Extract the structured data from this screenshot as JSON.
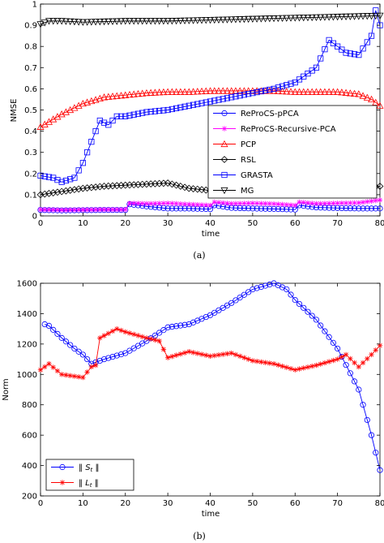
{
  "chart_data": [
    {
      "panel": "(a)",
      "type": "line",
      "xlabel": "time",
      "ylabel": "NMSE",
      "xlim": [
        0,
        80
      ],
      "ylim": [
        0,
        1
      ],
      "xticks": [
        0,
        10,
        20,
        30,
        40,
        50,
        60,
        70,
        80
      ],
      "yticks": [
        0,
        0.1,
        0.2,
        0.3,
        0.4,
        0.5,
        0.6,
        0.7,
        0.8,
        0.9,
        1
      ],
      "ytick_labels": [
        "0",
        "0.1",
        "0.2",
        "0.3",
        "0.4",
        "0.5",
        "0.6",
        "0.7",
        "0.8",
        "0.9",
        "1"
      ],
      "grid": false,
      "legend_position": "center-right",
      "series": [
        {
          "name": "ReProCS-pPCA",
          "color": "#0000ff",
          "marker": "circle",
          "x": [
            0,
            5,
            10,
            15,
            20,
            21,
            25,
            30,
            35,
            40,
            41,
            45,
            50,
            55,
            60,
            61,
            65,
            70,
            75,
            80
          ],
          "y": [
            0.028,
            0.026,
            0.027,
            0.028,
            0.028,
            0.055,
            0.045,
            0.035,
            0.035,
            0.032,
            0.05,
            0.038,
            0.035,
            0.033,
            0.03,
            0.05,
            0.04,
            0.037,
            0.035,
            0.035
          ]
        },
        {
          "name": "ReProCS-Recursive-PCA",
          "color": "#ff00ff",
          "marker": "star",
          "x": [
            0,
            5,
            10,
            15,
            20,
            21,
            25,
            30,
            35,
            40,
            41,
            45,
            50,
            55,
            60,
            61,
            65,
            70,
            75,
            80
          ],
          "y": [
            0.03,
            0.028,
            0.029,
            0.03,
            0.03,
            0.06,
            0.058,
            0.06,
            0.055,
            0.05,
            0.065,
            0.058,
            0.06,
            0.057,
            0.05,
            0.065,
            0.058,
            0.06,
            0.062,
            0.075
          ]
        },
        {
          "name": "PCP",
          "color": "#ff0000",
          "marker": "triangle-up",
          "x": [
            0,
            5,
            10,
            15,
            20,
            25,
            30,
            35,
            40,
            45,
            50,
            55,
            60,
            65,
            70,
            75,
            78,
            80
          ],
          "y": [
            0.42,
            0.48,
            0.53,
            0.56,
            0.57,
            0.58,
            0.585,
            0.585,
            0.59,
            0.59,
            0.59,
            0.59,
            0.585,
            0.585,
            0.585,
            0.575,
            0.55,
            0.52
          ]
        },
        {
          "name": "RSL",
          "color": "#000000",
          "marker": "diamond",
          "x": [
            0,
            5,
            10,
            15,
            20,
            25,
            30,
            35,
            40,
            45,
            50,
            55,
            60,
            65,
            70,
            75,
            80
          ],
          "y": [
            0.1,
            0.115,
            0.13,
            0.14,
            0.145,
            0.15,
            0.155,
            0.13,
            0.12,
            0.12,
            0.125,
            0.13,
            0.13,
            0.13,
            0.135,
            0.13,
            0.14
          ]
        },
        {
          "name": "GRASTA",
          "color": "#0000ff",
          "marker": "square",
          "x": [
            0,
            3,
            5,
            8,
            10,
            12,
            14,
            16,
            18,
            20,
            25,
            30,
            35,
            40,
            45,
            50,
            55,
            60,
            65,
            68,
            70,
            72,
            75,
            78,
            79,
            80
          ],
          "y": [
            0.19,
            0.18,
            0.16,
            0.18,
            0.25,
            0.35,
            0.45,
            0.43,
            0.47,
            0.47,
            0.49,
            0.5,
            0.52,
            0.54,
            0.56,
            0.58,
            0.6,
            0.63,
            0.7,
            0.83,
            0.8,
            0.77,
            0.76,
            0.85,
            0.97,
            0.9
          ]
        },
        {
          "name": "MG",
          "color": "#000000",
          "marker": "triangle-down",
          "x": [
            0,
            2,
            5,
            10,
            20,
            30,
            40,
            50,
            60,
            70,
            80
          ],
          "y": [
            0.905,
            0.92,
            0.92,
            0.915,
            0.92,
            0.92,
            0.925,
            0.93,
            0.935,
            0.94,
            0.945
          ]
        }
      ]
    },
    {
      "panel": "(b)",
      "type": "line",
      "xlabel": "time",
      "ylabel": "Norm",
      "xlim": [
        0,
        80
      ],
      "ylim": [
        200,
        1600
      ],
      "xticks": [
        0,
        10,
        20,
        30,
        40,
        50,
        60,
        70,
        80
      ],
      "yticks": [
        200,
        400,
        600,
        800,
        1000,
        1200,
        1400,
        1600
      ],
      "ytick_labels": [
        "200",
        "400",
        "600",
        "800",
        "1000",
        "1200",
        "1400",
        "1600"
      ],
      "grid": false,
      "legend_position": "bottom-left",
      "series": [
        {
          "name": "||S_t||",
          "color": "#0000ff",
          "marker": "circle",
          "x": [
            1,
            2,
            5,
            8,
            10,
            12,
            13,
            15,
            20,
            25,
            30,
            35,
            40,
            45,
            50,
            55,
            58,
            60,
            65,
            70,
            75,
            78,
            80
          ],
          "y": [
            1330,
            1320,
            1240,
            1170,
            1130,
            1070,
            1080,
            1100,
            1140,
            1220,
            1310,
            1330,
            1390,
            1470,
            1560,
            1600,
            1560,
            1490,
            1360,
            1170,
            900,
            600,
            370
          ]
        },
        {
          "name": "||L_t||",
          "color": "#ff0000",
          "marker": "star",
          "x": [
            0,
            2,
            5,
            10,
            12,
            13,
            14,
            18,
            20,
            25,
            28,
            30,
            35,
            40,
            45,
            50,
            55,
            60,
            65,
            70,
            72,
            75,
            78,
            80
          ],
          "y": [
            1030,
            1070,
            1000,
            980,
            1050,
            1060,
            1240,
            1300,
            1280,
            1240,
            1220,
            1110,
            1150,
            1120,
            1140,
            1090,
            1070,
            1030,
            1060,
            1100,
            1130,
            1050,
            1130,
            1190
          ]
        }
      ],
      "legend_entries": [
        {
          "prefix": "‖",
          "sym": "S",
          "sub": "t",
          "suffix": "‖"
        },
        {
          "prefix": "‖",
          "sym": "L",
          "sub": "t",
          "suffix": "‖"
        }
      ]
    }
  ]
}
